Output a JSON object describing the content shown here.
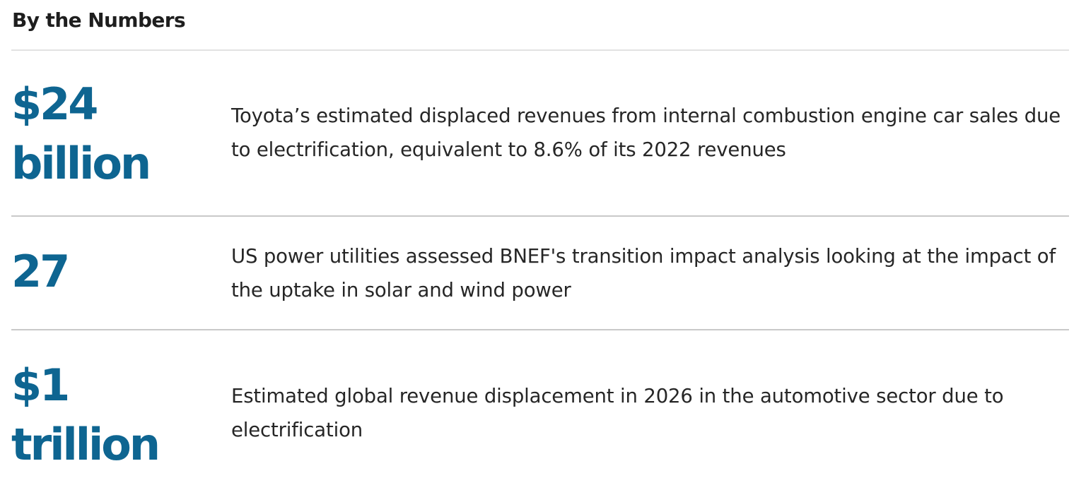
{
  "header": {
    "title": "By the Numbers"
  },
  "stats": [
    {
      "value": "$24 billion",
      "description": "Toyota’s estimated displaced revenues from internal combustion engine car sales due to electrification, equivalent to 8.6% of its 2022 revenues"
    },
    {
      "value": "27",
      "description": "US power utilities assessed BNEF's transition impact analysis looking at the impact of the uptake in solar and wind power"
    },
    {
      "value": "$1 trillion",
      "description": "Estimated global revenue displacement in 2026 in the automotive sector due to electrification"
    }
  ],
  "colors": {
    "accent": "#0e6591",
    "text": "#262626",
    "divider": "#c9c9c9"
  }
}
